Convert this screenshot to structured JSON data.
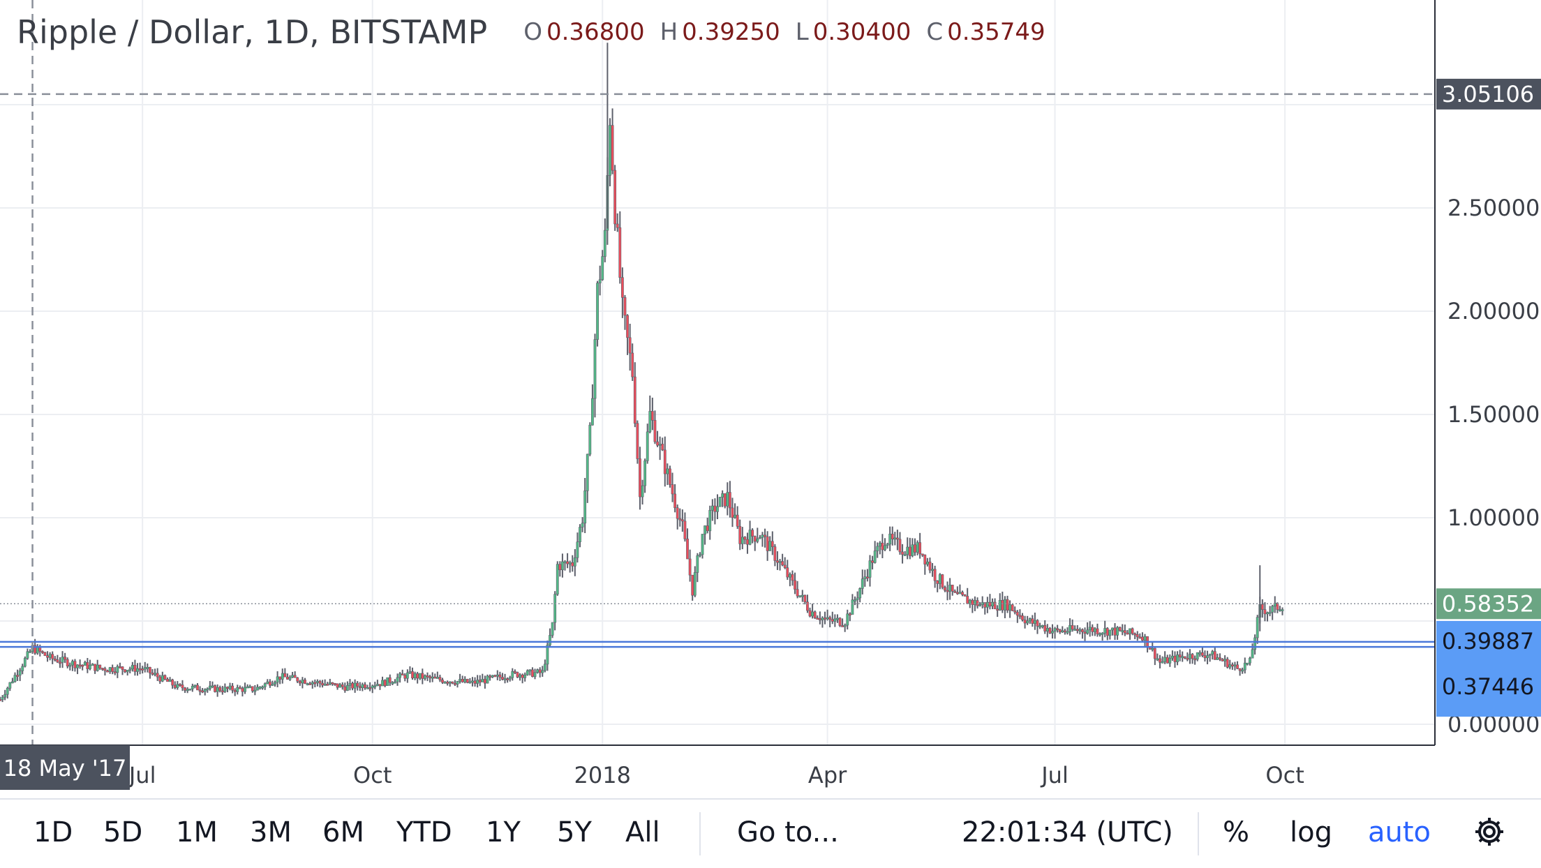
{
  "legend": {
    "title": "Ripple / Dollar, 1D, BITSTAMP",
    "open_key": "O",
    "open": "0.36800",
    "high_key": "H",
    "high": "0.39250",
    "low_key": "L",
    "low": "0.30400",
    "close_key": "C",
    "close": "0.35749"
  },
  "toolbar": {
    "ranges": [
      "1D",
      "5D",
      "1M",
      "3M",
      "6M",
      "YTD",
      "1Y",
      "5Y",
      "All"
    ],
    "goto": "Go to...",
    "time": "22:01:34 (UTC)",
    "percent": "%",
    "log": "log",
    "auto": "auto"
  },
  "colors": {
    "up": "#53b987",
    "down": "#eb4d5c",
    "wick": "#5d606b",
    "grid": "#eceef2",
    "hline": "#4a77d9",
    "price_tag": "#6ba583",
    "crosshair_tag": "#4c525e",
    "line_tag": "#5b9cf6"
  },
  "chart_data": {
    "type": "candlestick",
    "title": "Ripple / Dollar, 1D, BITSTAMP",
    "x_ticks": [
      "Jul",
      "Oct",
      "2018",
      "Apr",
      "Jul",
      "Oct"
    ],
    "y_ticks": [
      "0.00000",
      "1.00000",
      "1.50000",
      "2.00000",
      "2.50000"
    ],
    "ylim": [
      -0.1,
      3.3
    ],
    "xlim": [
      "2017-05-05",
      "2018-11-30"
    ],
    "grid": true,
    "crosshair": {
      "date_label": "18 May '17",
      "price_label": "3.05106",
      "date": "2017-05-18",
      "price": 3.05106
    },
    "last_price": {
      "label": "0.58352",
      "value": 0.58352
    },
    "horizontal_lines": [
      {
        "label": "0.39887",
        "value": 0.39887
      },
      {
        "label": "0.37446",
        "value": 0.37446
      }
    ],
    "close_path": [
      [
        "2017-05-05",
        0.12
      ],
      [
        "2017-05-18",
        0.37
      ],
      [
        "2017-05-25",
        0.32
      ],
      [
        "2017-06-05",
        0.29
      ],
      [
        "2017-06-15",
        0.27
      ],
      [
        "2017-07-01",
        0.27
      ],
      [
        "2017-07-15",
        0.18
      ],
      [
        "2017-08-01",
        0.17
      ],
      [
        "2017-08-15",
        0.17
      ],
      [
        "2017-08-25",
        0.23
      ],
      [
        "2017-09-05",
        0.21
      ],
      [
        "2017-09-20",
        0.18
      ],
      [
        "2017-10-05",
        0.2
      ],
      [
        "2017-10-15",
        0.24
      ],
      [
        "2017-10-25",
        0.22
      ],
      [
        "2017-11-10",
        0.2
      ],
      [
        "2017-11-25",
        0.24
      ],
      [
        "2017-12-08",
        0.25
      ],
      [
        "2017-12-12",
        0.48
      ],
      [
        "2017-12-14",
        0.77
      ],
      [
        "2017-12-20",
        0.78
      ],
      [
        "2017-12-24",
        1.0
      ],
      [
        "2017-12-27",
        1.4
      ],
      [
        "2017-12-30",
        2.1
      ],
      [
        "2018-01-02",
        2.35
      ],
      [
        "2018-01-04",
        2.95
      ],
      [
        "2018-01-06",
        2.5
      ],
      [
        "2018-01-09",
        2.0
      ],
      [
        "2018-01-13",
        1.7
      ],
      [
        "2018-01-16",
        1.1
      ],
      [
        "2018-01-20",
        1.5
      ],
      [
        "2018-01-26",
        1.25
      ],
      [
        "2018-02-02",
        0.95
      ],
      [
        "2018-02-06",
        0.65
      ],
      [
        "2018-02-10",
        0.92
      ],
      [
        "2018-02-15",
        1.05
      ],
      [
        "2018-02-20",
        1.1
      ],
      [
        "2018-02-25",
        0.9
      ],
      [
        "2018-03-05",
        0.92
      ],
      [
        "2018-03-12",
        0.8
      ],
      [
        "2018-03-18",
        0.68
      ],
      [
        "2018-03-25",
        0.55
      ],
      [
        "2018-04-01",
        0.5
      ],
      [
        "2018-04-08",
        0.5
      ],
      [
        "2018-04-13",
        0.63
      ],
      [
        "2018-04-19",
        0.8
      ],
      [
        "2018-04-24",
        0.9
      ],
      [
        "2018-05-01",
        0.85
      ],
      [
        "2018-05-08",
        0.85
      ],
      [
        "2018-05-14",
        0.72
      ],
      [
        "2018-05-22",
        0.62
      ],
      [
        "2018-06-01",
        0.58
      ],
      [
        "2018-06-12",
        0.58
      ],
      [
        "2018-06-20",
        0.5
      ],
      [
        "2018-07-01",
        0.45
      ],
      [
        "2018-07-15",
        0.46
      ],
      [
        "2018-07-25",
        0.45
      ],
      [
        "2018-08-05",
        0.43
      ],
      [
        "2018-08-12",
        0.3
      ],
      [
        "2018-08-22",
        0.33
      ],
      [
        "2018-09-01",
        0.34
      ],
      [
        "2018-09-12",
        0.27
      ],
      [
        "2018-09-17",
        0.3
      ],
      [
        "2018-09-21",
        0.56
      ],
      [
        "2018-09-25",
        0.55
      ],
      [
        "2018-09-30",
        0.58
      ]
    ]
  }
}
